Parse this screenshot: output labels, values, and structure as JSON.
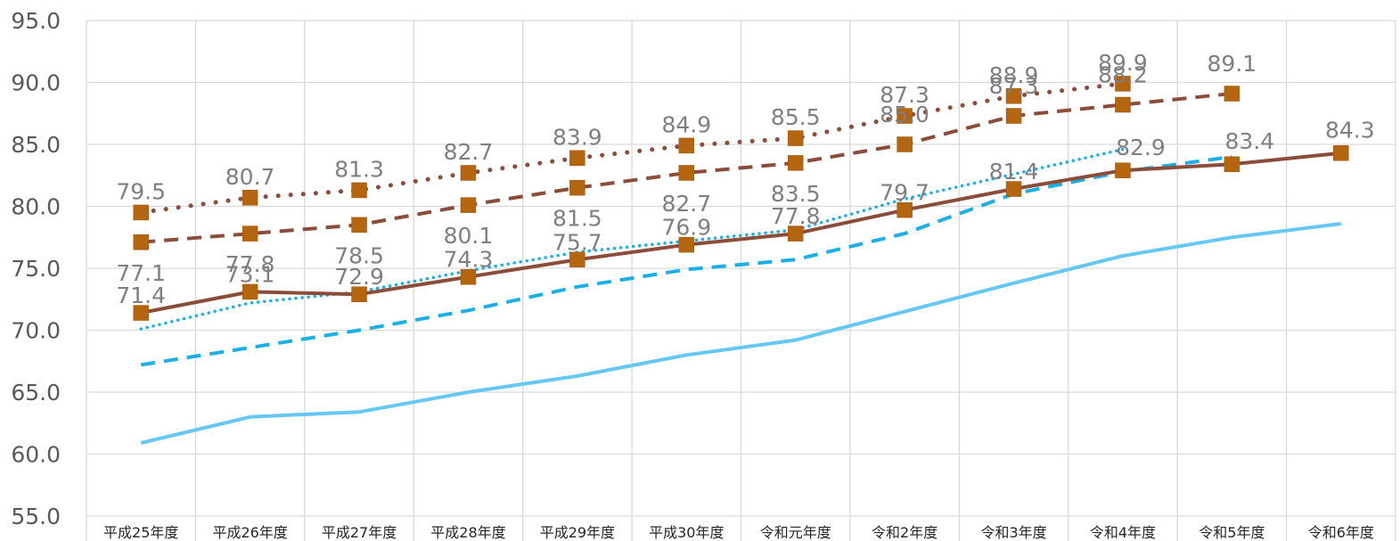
{
  "chart_data": {
    "type": "line",
    "categories": [
      "平成25年度",
      "平成26年度",
      "平成27年度",
      "平成28年度",
      "平成29年度",
      "平成30年度",
      "令和元年度",
      "令和2年度",
      "令和3年度",
      "令和4年度",
      "令和5年度",
      "令和6年度"
    ],
    "ylim": [
      55.0,
      95.0
    ],
    "yticks": [
      "55.0",
      "60.0",
      "65.0",
      "70.0",
      "75.0",
      "80.0",
      "85.0",
      "90.0",
      "95.0"
    ],
    "grid": true,
    "legend": "none",
    "series": [
      {
        "color": "#8B4C39",
        "line_style": "dotted",
        "marker": "square",
        "labels_shown": true,
        "values": [
          79.5,
          80.7,
          81.3,
          82.7,
          83.9,
          84.9,
          85.5,
          87.3,
          88.9,
          89.9,
          null,
          null
        ]
      },
      {
        "color": "#8B4C39",
        "line_style": "dashed",
        "marker": "square",
        "labels_shown": true,
        "values": [
          77.1,
          77.8,
          78.5,
          80.1,
          81.5,
          82.7,
          83.5,
          85.0,
          87.3,
          88.2,
          89.1,
          null
        ]
      },
      {
        "color": "#8B4C39",
        "line_style": "solid",
        "marker": "square",
        "labels_shown": true,
        "values": [
          71.4,
          73.1,
          72.9,
          74.3,
          75.7,
          76.9,
          77.8,
          79.7,
          81.4,
          82.9,
          83.4,
          84.3
        ]
      },
      {
        "color": "#1CAEE5",
        "line_style": "dotted",
        "marker": "none",
        "labels_shown": false,
        "values": [
          70.1,
          72.2,
          73.1,
          74.8,
          76.3,
          77.2,
          78.1,
          80.6,
          82.6,
          84.6,
          null,
          null
        ]
      },
      {
        "color": "#1CAEE5",
        "line_style": "dashed",
        "marker": "none",
        "labels_shown": false,
        "values": [
          67.2,
          68.6,
          70.0,
          71.6,
          73.5,
          74.9,
          75.7,
          77.8,
          81.0,
          82.8,
          84.0,
          null
        ]
      },
      {
        "color": "#66C7F2",
        "line_style": "solid",
        "marker": "none",
        "labels_shown": false,
        "values": [
          60.9,
          63.0,
          63.4,
          65.0,
          66.3,
          68.0,
          69.2,
          71.5,
          73.8,
          76.0,
          77.5,
          78.6
        ]
      }
    ]
  }
}
